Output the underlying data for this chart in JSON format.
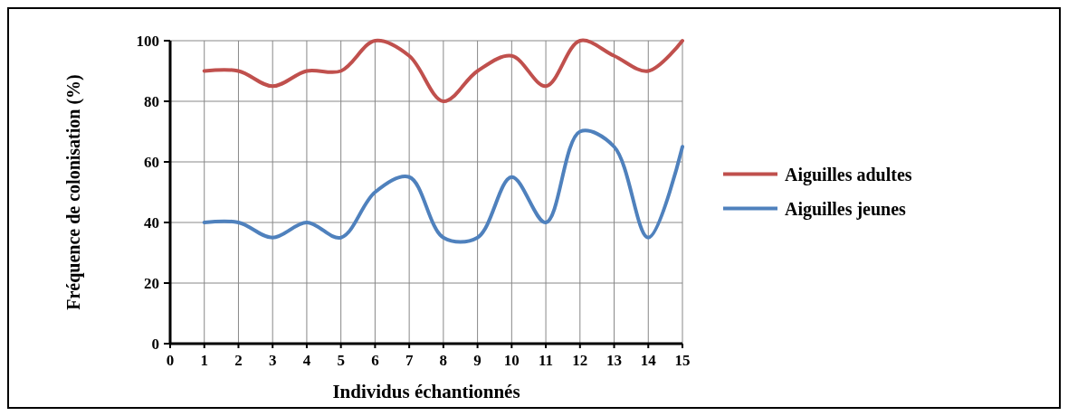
{
  "chart_data": {
    "type": "line",
    "xlabel": "Individus échantionnés",
    "ylabel": "Fréquence de colonisation (%)",
    "x": [
      1,
      2,
      3,
      4,
      5,
      6,
      7,
      8,
      9,
      10,
      11,
      12,
      13,
      14,
      15
    ],
    "xlim": [
      0,
      15
    ],
    "xticks": [
      0,
      1,
      2,
      3,
      4,
      5,
      6,
      7,
      8,
      9,
      10,
      11,
      12,
      13,
      14,
      15
    ],
    "ylim": [
      0,
      100
    ],
    "yticks": [
      0,
      20,
      40,
      60,
      80,
      100
    ],
    "grid": true,
    "legend": "right",
    "marker": "none",
    "line_style": "solid",
    "series": [
      {
        "name": "Aiguilles adultes",
        "color": "#c0504d",
        "values": [
          90,
          90,
          85,
          90,
          90,
          100,
          95,
          80,
          90,
          95,
          85,
          100,
          95,
          90,
          100
        ]
      },
      {
        "name": "Aiguilles jeunes",
        "color": "#4f81bd",
        "values": [
          40,
          40,
          35,
          40,
          35,
          50,
          55,
          35,
          35,
          55,
          40,
          70,
          65,
          35,
          65
        ]
      }
    ]
  }
}
